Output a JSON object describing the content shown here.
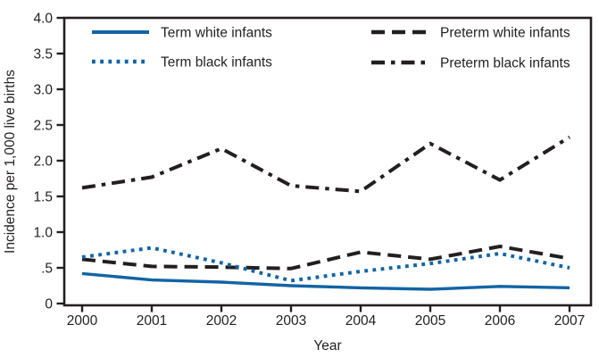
{
  "chart_data": {
    "type": "line",
    "title": "",
    "xlabel": "Year",
    "ylabel": "Incidence per 1,000 live births",
    "x": [
      2000,
      2001,
      2002,
      2003,
      2004,
      2005,
      2006,
      2007
    ],
    "xticks": [
      "2000",
      "2001",
      "2002",
      "2003",
      "2004",
      "2005",
      "2006",
      "2007"
    ],
    "ylim": [
      0,
      4.0
    ],
    "ytick_values": [
      0,
      0.5,
      1.0,
      1.5,
      2.0,
      2.5,
      3.0,
      3.5,
      4.0
    ],
    "yticks": [
      "0",
      ".5",
      "1.0",
      "1.5",
      "2.0",
      "2.5",
      "3.0",
      "3.5",
      "4.0"
    ],
    "grid": false,
    "legend_position": "top-inside-two-columns",
    "series": [
      {
        "name": "Preterm black infants",
        "style": "dashdot",
        "color": "#231f20",
        "values": [
          1.62,
          1.77,
          2.17,
          1.65,
          1.57,
          2.24,
          1.73,
          2.33
        ]
      },
      {
        "name": "Preterm white infants",
        "style": "dashed",
        "color": "#231f20",
        "values": [
          0.62,
          0.52,
          0.51,
          0.49,
          0.72,
          0.62,
          0.8,
          0.63
        ]
      },
      {
        "name": "Term black infants",
        "style": "dotted",
        "color": "#1164a5",
        "values": [
          0.65,
          0.78,
          0.57,
          0.32,
          0.45,
          0.56,
          0.7,
          0.5
        ]
      },
      {
        "name": "Term white infants",
        "style": "solid",
        "color": "#1164a5",
        "values": [
          0.42,
          0.33,
          0.3,
          0.25,
          0.22,
          0.2,
          0.24,
          0.22
        ]
      }
    ],
    "legend_order": [
      "Term white infants",
      "Term black infants",
      "Preterm white infants",
      "Preterm black infants"
    ]
  },
  "colors": {
    "background": "#ffffff",
    "axis": "#231f20",
    "blue_line": "#1164a5",
    "black_line": "#231f20"
  }
}
